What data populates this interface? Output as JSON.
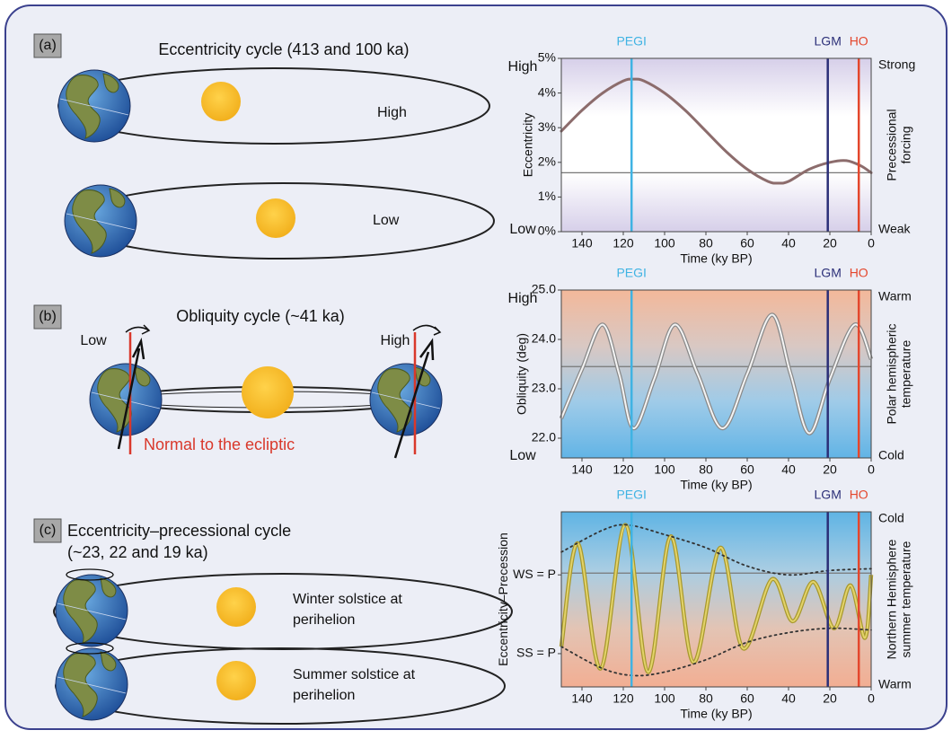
{
  "diagram": {
    "a": {
      "label": "(a)",
      "title": "Eccentricity cycle (413 and 100 ka)",
      "high": "High",
      "low": "Low"
    },
    "b": {
      "label": "(b)",
      "title": "Obliquity cycle (~41 ka)",
      "low": "Low",
      "high": "High",
      "normal": "Normal to the ecliptic"
    },
    "c": {
      "label": "(c)",
      "title": [
        "Eccentricity–precessional cycle",
        "(~23, 22 and 19 ka)"
      ],
      "winter": [
        "Winter solstice at",
        "perihelion"
      ],
      "summer": [
        "Summer solstice at",
        "perihelion"
      ]
    }
  },
  "chart_data": [
    {
      "type": "line",
      "y_title": "Eccentricity",
      "y2_title": [
        "Precessional",
        "forcing"
      ],
      "x_title": "Time (ky BP)",
      "y_side": [
        "High",
        "Low"
      ],
      "y2_side": [
        "Strong",
        "Weak"
      ],
      "xlim": [
        150,
        0
      ],
      "xticks": [
        140,
        120,
        100,
        80,
        60,
        40,
        20,
        0
      ],
      "ylim": [
        0,
        5
      ],
      "yticks": [
        {
          "value": 0,
          "label": "0%"
        },
        {
          "value": 1,
          "label": "1%"
        },
        {
          "value": 2,
          "label": "2%"
        },
        {
          "value": 3,
          "label": "3%"
        },
        {
          "value": 4,
          "label": "4%"
        },
        {
          "value": 5,
          "label": "5%"
        }
      ],
      "reference_y": 1.7,
      "events": [
        {
          "label": "PEGI",
          "x": 116,
          "color": "#3fb3e3"
        },
        {
          "label": "LGM",
          "x": 21,
          "color": "#2b2f78"
        },
        {
          "label": "HO",
          "x": 6,
          "color": "#e4472d"
        }
      ],
      "background": [
        "#d6cfe9",
        "#ffffff",
        "#ffffff",
        "#d6cfe9"
      ],
      "series": [
        {
          "color": "#8c6c6c",
          "x": [
            150,
            140,
            130,
            120,
            115,
            110,
            100,
            90,
            80,
            70,
            60,
            50,
            45,
            40,
            30,
            20,
            12,
            5,
            0
          ],
          "values": [
            2.9,
            3.5,
            4.0,
            4.35,
            4.4,
            4.35,
            4.0,
            3.5,
            2.9,
            2.3,
            1.8,
            1.45,
            1.4,
            1.45,
            1.8,
            2.0,
            2.05,
            1.9,
            1.7
          ]
        }
      ]
    },
    {
      "type": "line",
      "y_title": "Obliquity (deg)",
      "y2_title": [
        "Polar hemispheric",
        "temperature"
      ],
      "x_title": "Time (ky BP)",
      "y_side": [
        "High",
        "Low"
      ],
      "y2_side": [
        "Warm",
        "Cold"
      ],
      "xlim": [
        150,
        0
      ],
      "xticks": [
        140,
        120,
        100,
        80,
        60,
        40,
        20,
        0
      ],
      "ylim": [
        21.6,
        25
      ],
      "yticks": [
        {
          "value": 22,
          "label": "22.0"
        },
        {
          "value": 23,
          "label": "23.0"
        },
        {
          "value": 24,
          "label": "24.0"
        },
        {
          "value": 25,
          "label": "25.0"
        }
      ],
      "reference_y": 23.45,
      "events": [
        {
          "label": "PEGI",
          "x": 116,
          "color": "#3fb3e3"
        },
        {
          "label": "LGM",
          "x": 21,
          "color": "#2b2f78"
        },
        {
          "label": "HO",
          "x": 6,
          "color": "#e4472d"
        }
      ],
      "background": [
        "#f3b89a",
        "#d9c8c3",
        "#9fcbe8",
        "#62b4e6"
      ],
      "series": [
        {
          "color": "#f4f4f4",
          "edge_color": "#8a8a8a",
          "x": [
            150,
            140,
            130,
            122,
            115,
            105,
            95,
            84,
            72,
            60,
            48,
            39,
            30,
            20,
            8,
            0
          ],
          "values": [
            22.4,
            23.4,
            24.3,
            23.3,
            22.2,
            23.2,
            24.3,
            23.3,
            22.2,
            23.3,
            24.5,
            23.3,
            22.1,
            23.2,
            24.3,
            23.6
          ]
        }
      ]
    },
    {
      "type": "line",
      "y_title": "Eccentricity–Precession",
      "y2_title": [
        "Northern Hemisphere",
        "summer temperature"
      ],
      "x_title": "Time (ky BP)",
      "y2_side": [
        "Cold",
        "Warm"
      ],
      "xlim": [
        150,
        0
      ],
      "xticks": [
        140,
        120,
        100,
        80,
        60,
        40,
        20,
        0
      ],
      "ylim": [
        -1,
        1
      ],
      "yticks": [
        {
          "value": 0.28,
          "label": "WS = P"
        },
        {
          "value": -0.62,
          "label": "SS = P"
        }
      ],
      "reference_y": 0.3,
      "events": [
        {
          "label": "PEGI",
          "x": 116,
          "color": "#3fb3e3"
        },
        {
          "label": "LGM",
          "x": 21,
          "color": "#2b2f78"
        },
        {
          "label": "HO",
          "x": 6,
          "color": "#e4472d"
        }
      ],
      "background": [
        "#5fb4e4",
        "#a9cde3",
        "#e3c4b4",
        "#f2ae93"
      ],
      "series": [
        {
          "color": "#e3d36a",
          "edge_color": "#a8992e",
          "x": [
            150,
            142,
            131,
            119,
            108,
            97,
            86,
            73,
            62,
            48,
            38,
            28,
            18,
            10,
            3,
            0
          ],
          "values": [
            -0.54,
            0.64,
            -0.79,
            0.85,
            -0.83,
            0.72,
            -0.72,
            0.59,
            -0.56,
            0.23,
            -0.25,
            0.2,
            -0.33,
            0.16,
            -0.44,
            0.28
          ]
        },
        {
          "color": "#333333",
          "dash": true,
          "x": [
            150,
            130,
            118,
            100,
            80,
            60,
            40,
            20,
            0
          ],
          "values": [
            0.54,
            0.79,
            0.85,
            0.74,
            0.59,
            0.38,
            0.28,
            0.33,
            0.35
          ]
        },
        {
          "color": "#333333",
          "dash": true,
          "x": [
            150,
            130,
            115,
            100,
            80,
            60,
            40,
            20,
            0
          ],
          "values": [
            -0.54,
            -0.79,
            -0.87,
            -0.83,
            -0.69,
            -0.49,
            -0.38,
            -0.33,
            -0.35
          ]
        }
      ]
    }
  ]
}
